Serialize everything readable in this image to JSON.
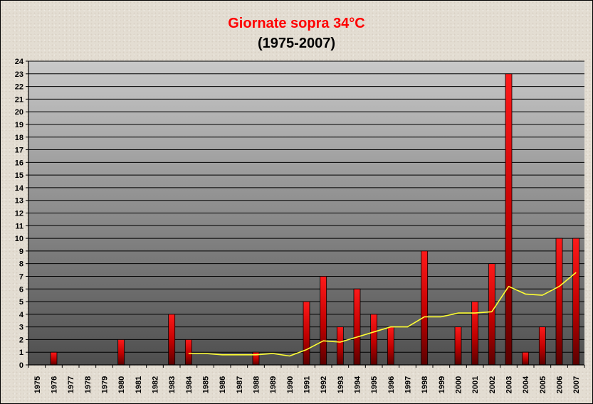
{
  "chart_data": {
    "type": "bar",
    "title": "Giornate sopra 34°C",
    "subtitle": "(1975-2007)",
    "xlabel": "",
    "ylabel": "",
    "ylim": [
      0,
      24
    ],
    "yticks": [
      0,
      1,
      2,
      3,
      4,
      5,
      6,
      7,
      8,
      9,
      10,
      11,
      12,
      13,
      14,
      15,
      16,
      17,
      18,
      19,
      20,
      21,
      22,
      23,
      24
    ],
    "grid": true,
    "legend": "none",
    "categories": [
      "1975",
      "1976",
      "1977",
      "1978",
      "1979",
      "1980",
      "1981",
      "1982",
      "1983",
      "1984",
      "1985",
      "1986",
      "1987",
      "1988",
      "1989",
      "1990",
      "1991",
      "1992",
      "1993",
      "1994",
      "1995",
      "1996",
      "1997",
      "1998",
      "1999",
      "2000",
      "2001",
      "2002",
      "2003",
      "2004",
      "2005",
      "2006",
      "2007"
    ],
    "series": [
      {
        "type": "bar",
        "values": [
          0,
          1,
          0,
          0,
          0,
          2,
          0,
          0,
          4,
          2,
          0,
          0,
          0,
          1,
          0,
          0,
          5,
          7,
          3,
          6,
          4,
          3,
          0,
          9,
          0,
          3,
          5,
          8,
          23,
          1,
          3,
          10,
          10
        ]
      },
      {
        "type": "line",
        "values": [
          null,
          null,
          null,
          null,
          null,
          null,
          null,
          null,
          null,
          0.9,
          0.9,
          0.8,
          0.8,
          0.8,
          0.9,
          0.7,
          1.2,
          1.9,
          1.8,
          2.2,
          2.6,
          3.0,
          3.0,
          3.8,
          3.8,
          4.1,
          4.1,
          4.2,
          6.2,
          5.6,
          5.5,
          6.2,
          7.3
        ]
      }
    ],
    "colors": {
      "bar_top": "#ff1a1a",
      "bar_bottom": "#5a0000",
      "trend_line": "#ffff33",
      "plot_top": "#c8c8c8",
      "plot_bottom": "#505050",
      "title": "#ff0000"
    }
  }
}
